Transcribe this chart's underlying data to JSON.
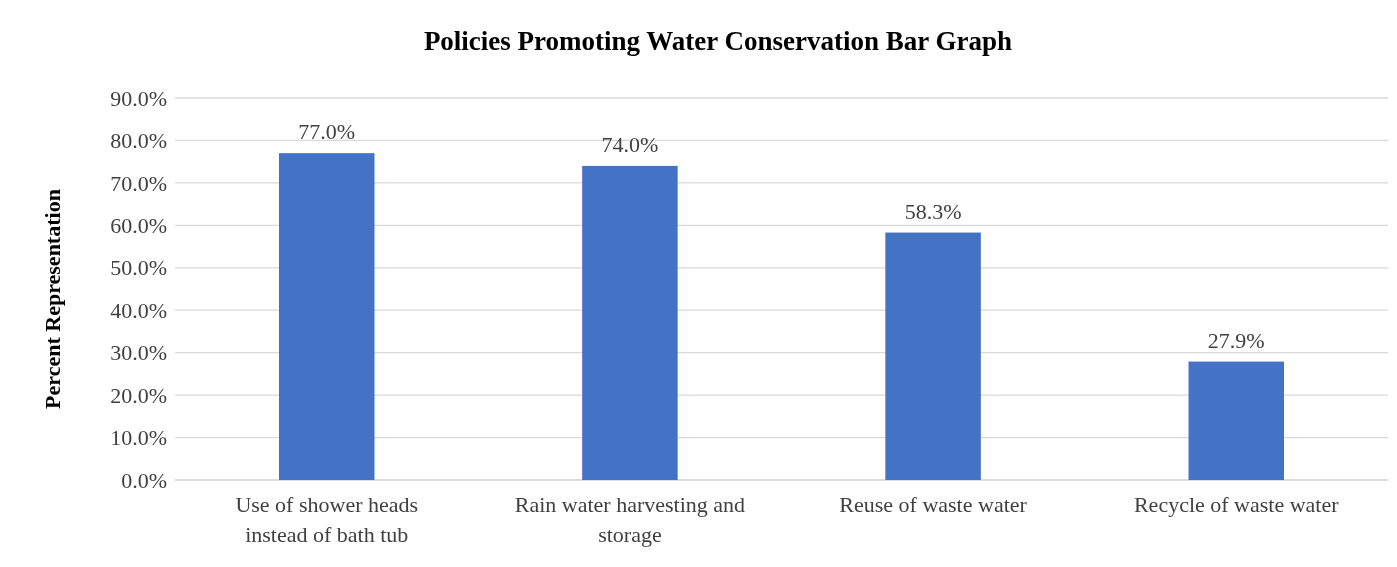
{
  "chart_data": {
    "type": "bar",
    "title": "Policies Promoting Water Conservation Bar Graph",
    "ylabel": "Percent Representation",
    "categories": [
      "Use of shower heads instead of bath tub",
      "Rain water harvesting and storage",
      "Reuse of waste water",
      "Recycle of waste water"
    ],
    "values": [
      77.0,
      74.0,
      58.3,
      27.9
    ],
    "value_labels": [
      "77.0%",
      "74.0%",
      "58.3%",
      "27.9%"
    ],
    "color": "#4472c4",
    "ylim": [
      0,
      90
    ],
    "yticks": [
      {
        "value": 0,
        "label": "0.0%"
      },
      {
        "value": 10,
        "label": "10.0%"
      },
      {
        "value": 20,
        "label": "20.0%"
      },
      {
        "value": 30,
        "label": "30.0%"
      },
      {
        "value": 40,
        "label": "40.0%"
      },
      {
        "value": 50,
        "label": "50.0%"
      },
      {
        "value": 60,
        "label": "60.0%"
      },
      {
        "value": 70,
        "label": "70.0%"
      },
      {
        "value": 80,
        "label": "80.0%"
      },
      {
        "value": 90,
        "label": "90.0%"
      }
    ],
    "grid": "y"
  }
}
